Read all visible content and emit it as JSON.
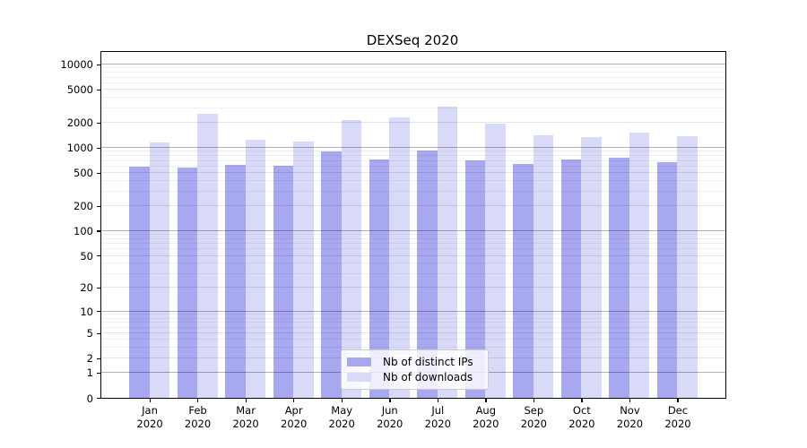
{
  "chart_data": {
    "type": "bar",
    "title": "DEXSeq 2020",
    "months": [
      "Jan",
      "Feb",
      "Mar",
      "Apr",
      "May",
      "Jun",
      "Jul",
      "Aug",
      "Sep",
      "Oct",
      "Nov",
      "Dec"
    ],
    "year": "2020",
    "categories": [
      "Jan 2020",
      "Feb 2020",
      "Mar 2020",
      "Apr 2020",
      "May 2020",
      "Jun 2020",
      "Jul 2020",
      "Aug 2020",
      "Sep 2020",
      "Oct 2020",
      "Nov 2020",
      "Dec 2020"
    ],
    "series": [
      {
        "name": "Nb of distinct IPs",
        "color": "#a8a8f0",
        "values": [
          590,
          575,
          615,
          600,
          905,
          715,
          925,
          700,
          635,
          720,
          750,
          670
        ]
      },
      {
        "name": "Nb of downloads",
        "color": "#d9d9f8",
        "values": [
          1150,
          2520,
          1230,
          1180,
          2140,
          2320,
          3120,
          1920,
          1400,
          1340,
          1500,
          1380
        ]
      }
    ],
    "yscale": "log1p",
    "yticks": [
      0,
      1,
      2,
      5,
      10,
      20,
      50,
      100,
      200,
      500,
      1000,
      2000,
      5000,
      10000
    ],
    "ylim": [
      0,
      14000
    ],
    "grid": true,
    "legend_position": "lower-center",
    "gridline_colors": {
      "strong": "rgba(0,0,0,0.30)",
      "mid": "rgba(0,0,0,0.10)",
      "minor": "rgba(0,0,0,0.06)"
    }
  }
}
